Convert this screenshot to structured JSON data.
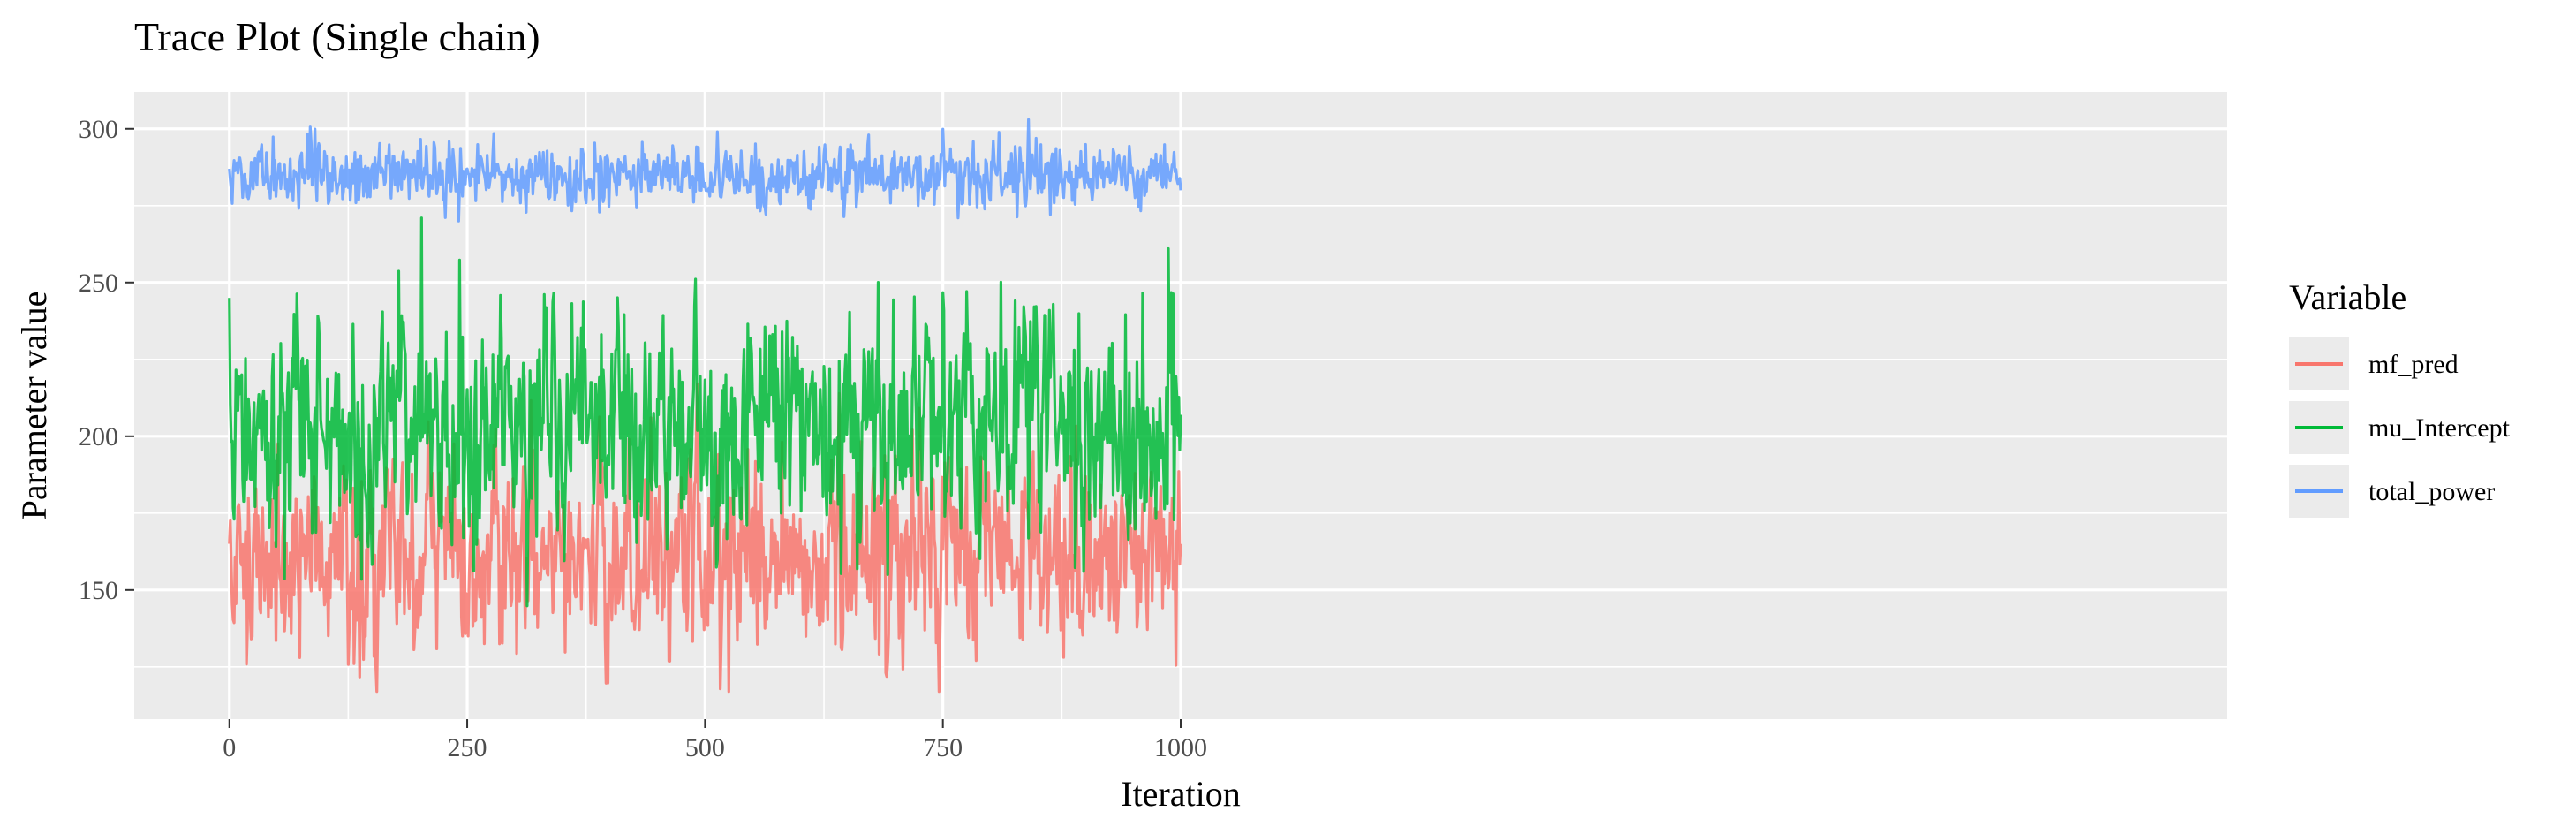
{
  "chart_data": {
    "type": "line",
    "title": "Trace Plot (Single chain)",
    "xlabel": "Iteration",
    "ylabel": "Parameter value",
    "xlim": [
      -100,
      2100
    ],
    "ylim": [
      108,
      312
    ],
    "x_ticks": [
      0,
      250,
      500,
      750,
      1000
    ],
    "y_ticks": [
      150,
      200,
      250,
      300
    ],
    "grid": true,
    "legend": {
      "title": "Variable",
      "position": "right"
    },
    "n_iterations": 1000,
    "series": [
      {
        "name": "mf_pred",
        "color": "#F8766D",
        "mean": 161,
        "sd": 16,
        "min": 117,
        "max": 222,
        "start": 165,
        "end": 165
      },
      {
        "name": "mu_Intercept",
        "color": "#00BA38",
        "mean": 204,
        "sd": 20,
        "min": 134,
        "max": 271,
        "start": 245,
        "end": 207
      },
      {
        "name": "total_power",
        "color": "#619CFF",
        "mean": 285,
        "sd": 5,
        "min": 270,
        "max": 303,
        "start": 287,
        "end": 280
      }
    ]
  }
}
